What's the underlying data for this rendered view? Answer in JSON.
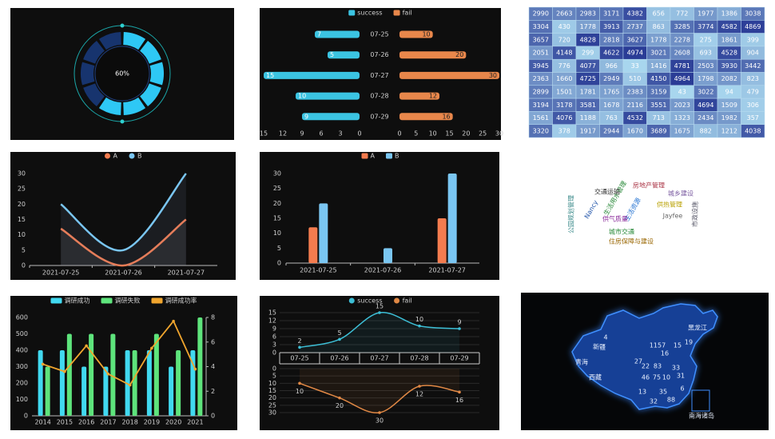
{
  "chart_data": [
    {
      "type": "gauge",
      "value": 60,
      "value_label": "60%",
      "ylim": [
        0,
        100
      ],
      "color": "#2ec8f5",
      "track_color": "#17346e"
    },
    {
      "type": "butterfly",
      "categories": [
        "07-25",
        "07-26",
        "07-27",
        "07-28",
        "07-29"
      ],
      "series": [
        {
          "name": "success",
          "color": "#3bc4e2",
          "values": [
            7,
            5,
            15,
            10,
            9
          ],
          "xlim": [
            0,
            15
          ],
          "xticks": [
            0,
            3,
            6,
            9,
            12,
            15
          ]
        },
        {
          "name": "fail",
          "color": "#e8874b",
          "values": [
            10,
            20,
            30,
            12,
            16
          ],
          "xlim": [
            0,
            30
          ],
          "xticks": [
            0,
            5,
            10,
            15,
            20,
            25,
            30
          ]
        }
      ]
    },
    {
      "type": "line",
      "smooth": true,
      "area": true,
      "categories": [
        "2021-07-25",
        "2021-07-26",
        "2021-07-27"
      ],
      "series": [
        {
          "name": "A",
          "color": "#f47c4f",
          "values": [
            12,
            0,
            15
          ]
        },
        {
          "name": "B",
          "color": "#7ac6f2",
          "values": [
            20,
            5,
            30
          ]
        }
      ],
      "ylim": [
        0,
        30
      ],
      "yticks": [
        0,
        5,
        10,
        15,
        20,
        25,
        30
      ]
    },
    {
      "type": "bar",
      "categories": [
        "2021-07-25",
        "2021-07-26",
        "2021-07-27"
      ],
      "series": [
        {
          "name": "A",
          "color": "#f47c4f",
          "values": [
            12,
            0,
            15
          ]
        },
        {
          "name": "B",
          "color": "#7ac6f2",
          "values": [
            20,
            5,
            30
          ]
        }
      ],
      "ylim": [
        0,
        30
      ],
      "yticks": [
        0,
        5,
        10,
        15,
        20,
        25,
        30
      ]
    },
    {
      "type": "combo",
      "categories": [
        "2014",
        "2015",
        "2016",
        "2017",
        "2018",
        "2019",
        "2020",
        "2021"
      ],
      "series": [
        {
          "name": "调研成功",
          "color": "#41d9f0",
          "kind": "bar",
          "values": [
            400,
            400,
            300,
            300,
            400,
            400,
            300,
            400
          ]
        },
        {
          "name": "调研失败",
          "color": "#5ee47c",
          "kind": "bar",
          "values": [
            300,
            500,
            500,
            500,
            400,
            500,
            400,
            600
          ]
        },
        {
          "name": "调研成功率",
          "color": "#f0a52e",
          "kind": "line",
          "axis": "y2",
          "values": [
            4.2,
            3.6,
            5.7,
            3.4,
            2.5,
            5.5,
            7.7,
            3.8
          ]
        }
      ],
      "ylim": [
        0,
        600
      ],
      "yticks": [
        0,
        100,
        200,
        300,
        400,
        500,
        600
      ],
      "y2lim": [
        0,
        8
      ],
      "y2ticks": [
        0,
        2,
        4,
        6,
        8
      ]
    },
    {
      "type": "mirror",
      "categories": [
        "07-25",
        "07-26",
        "07-27",
        "07-28",
        "07-29"
      ],
      "series": [
        {
          "name": "success",
          "color": "#3dbfd6",
          "values": [
            2,
            5,
            15,
            10,
            9
          ]
        },
        {
          "name": "fail",
          "color": "#e08845",
          "axis": "y2",
          "values": [
            10,
            20,
            30,
            12,
            16
          ]
        }
      ],
      "ylim": [
        0,
        15
      ],
      "yticks": [
        0,
        3,
        6,
        9,
        12,
        15
      ],
      "y2lim": [
        0,
        30
      ],
      "y2ticks": [
        0,
        5,
        10,
        15,
        20,
        25,
        30
      ],
      "y2_inverse": true
    }
  ],
  "table": {
    "rows": [
      [
        2990,
        2663,
        2983,
        3171,
        4382,
        656,
        772,
        1977,
        1386,
        3038
      ],
      [
        3304,
        430,
        1778,
        3913,
        2737,
        863,
        3285,
        3774,
        4582,
        4869
      ],
      [
        3657,
        720,
        4828,
        2818,
        3627,
        1778,
        2278,
        275,
        1861,
        399
      ],
      [
        2051,
        4148,
        299,
        4622,
        4974,
        3021,
        2608,
        693,
        4528,
        904
      ],
      [
        3945,
        776,
        4077,
        966,
        33,
        1416,
        4781,
        2503,
        3930,
        3442
      ],
      [
        2363,
        1660,
        4725,
        2949,
        510,
        4150,
        4964,
        1798,
        2082,
        823
      ],
      [
        2899,
        1501,
        1781,
        1765,
        2383,
        3159,
        43,
        3022,
        94,
        479
      ],
      [
        3194,
        3178,
        3581,
        1678,
        2116,
        3551,
        2023,
        4694,
        1509,
        306
      ],
      [
        1561,
        4076,
        1188,
        763,
        4532,
        713,
        1323,
        2434,
        1982,
        357
      ],
      [
        3320,
        378,
        1917,
        2944,
        1670,
        3689,
        1675,
        882,
        1212,
        4038
      ]
    ]
  },
  "word_cloud": {
    "words": [
      "生活资源",
      "供热管理",
      "生活用水管理",
      "供气质量",
      "Jayfee",
      "交通运输",
      "城市交通",
      "房地产管理",
      "城乡建设",
      "Nancy",
      "住房保障与建设",
      "公园规划管理",
      "市政设施"
    ]
  },
  "map": {
    "labels": [
      "新疆",
      "西藏",
      "青海",
      "黑龙江",
      "4",
      "1157",
      "15",
      "19",
      "16",
      "27",
      "22",
      "83",
      "33",
      "31",
      "46",
      "75",
      "10",
      "13",
      "35",
      "32",
      "88",
      "6",
      "南海诸岛"
    ]
  }
}
